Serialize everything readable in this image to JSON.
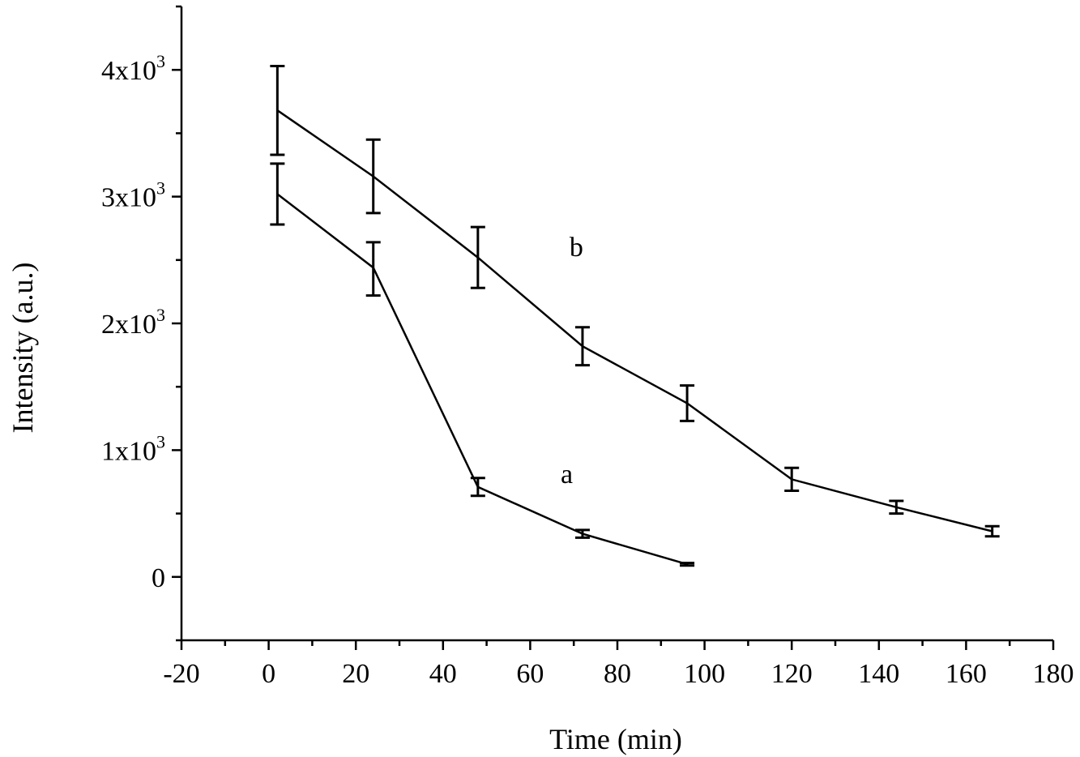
{
  "chart_data": {
    "type": "line",
    "title": "",
    "xlabel": "Time (min)",
    "ylabel": "Intensity (a.u.)",
    "xlim": [
      -20,
      180
    ],
    "ylim": [
      -500,
      4500
    ],
    "x_ticks": [
      -20,
      0,
      20,
      40,
      60,
      80,
      100,
      120,
      140,
      160,
      180
    ],
    "x_tick_labels": [
      "-20",
      "0",
      "20",
      "40",
      "60",
      "80",
      "100",
      "120",
      "140",
      "160",
      "180"
    ],
    "y_ticks": [
      {
        "value": 0,
        "base": "0",
        "exp": ""
      },
      {
        "value": 1000,
        "base": "1x10",
        "exp": "3"
      },
      {
        "value": 2000,
        "base": "2x10",
        "exp": "3"
      },
      {
        "value": 3000,
        "base": "3x10",
        "exp": "3"
      },
      {
        "value": 4000,
        "base": "4x10",
        "exp": "3"
      }
    ],
    "series": [
      {
        "name": "a",
        "x": [
          2,
          24,
          48,
          72,
          96
        ],
        "y": [
          3020,
          2440,
          710,
          340,
          100
        ],
        "err_low": [
          240,
          220,
          70,
          30,
          10
        ],
        "err_high": [
          240,
          200,
          70,
          30,
          10
        ],
        "label_at": [
          67,
          740
        ]
      },
      {
        "name": "b",
        "x": [
          2,
          24,
          48,
          72,
          96,
          120,
          144,
          166
        ],
        "y": [
          3680,
          3160,
          2520,
          1820,
          1370,
          770,
          550,
          360
        ],
        "err_low": [
          350,
          290,
          240,
          150,
          140,
          90,
          50,
          40
        ],
        "err_high": [
          350,
          290,
          240,
          150,
          140,
          90,
          50,
          40
        ],
        "label_at": [
          69,
          2530
        ]
      }
    ]
  }
}
